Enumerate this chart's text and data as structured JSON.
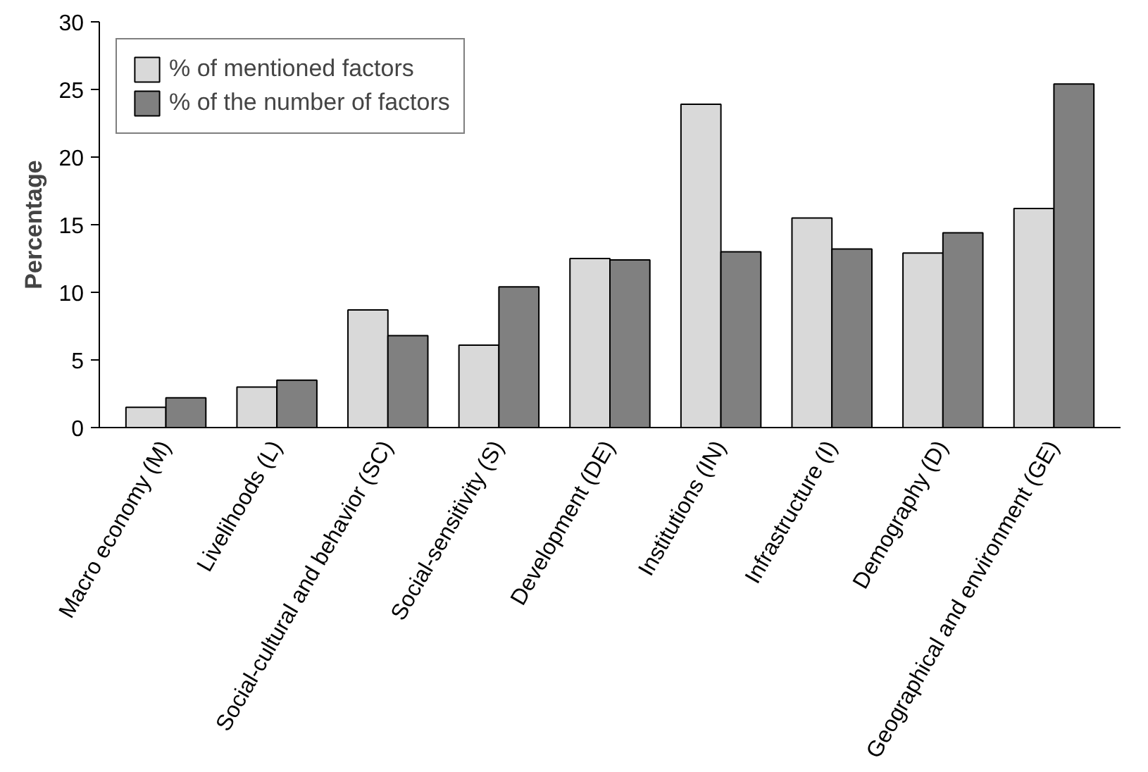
{
  "chart_data": {
    "type": "bar",
    "ylabel": "Percentage",
    "categories": [
      "Macro economy (M)",
      "Livelihoods (L)",
      "Social-cultural and behavior (SC)",
      "Social-sensitivity (S)",
      "Development (DE)",
      "Institutions (IN)",
      "Infrastructure (I)",
      "Demography (D)",
      "Geographical and environment (GE)"
    ],
    "series": [
      {
        "name": "% of mentioned factors",
        "color": "#d9d9d9",
        "values": [
          1.5,
          3.0,
          8.7,
          6.1,
          12.5,
          23.9,
          15.5,
          12.9,
          16.2
        ]
      },
      {
        "name": "% of the number of factors",
        "color": "#808080",
        "values": [
          2.2,
          3.5,
          6.8,
          10.4,
          12.4,
          13.0,
          13.2,
          14.4,
          25.4
        ]
      }
    ],
    "ylim": [
      0,
      30
    ],
    "yticks": [
      0,
      5,
      10,
      15,
      20,
      25,
      30
    ],
    "grid": false,
    "legend": "top left"
  }
}
